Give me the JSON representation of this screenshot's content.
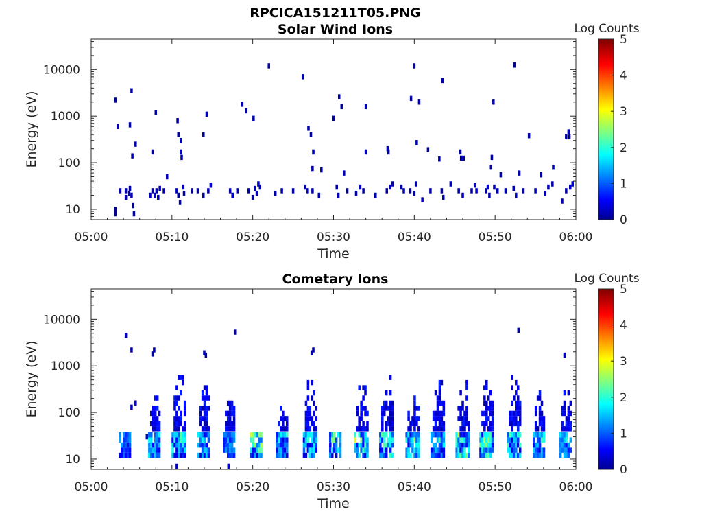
{
  "figure": {
    "title": "RPCICA151211T05.PNG"
  },
  "colorbar": {
    "label": "Log Counts",
    "ticks": [
      "0",
      "1",
      "2",
      "3",
      "4",
      "5"
    ],
    "range": [
      0,
      5
    ],
    "colormap": "jet"
  },
  "chart_data": [
    {
      "type": "heatmap",
      "title": "Solar Wind Ions",
      "xlabel": "Time",
      "ylabel": "Energy (eV)",
      "xlim": [
        "05:00",
        "06:00"
      ],
      "xticks": [
        "05:00",
        "05:10",
        "05:20",
        "05:30",
        "05:40",
        "05:50",
        "06:00"
      ],
      "ylim": [
        6,
        45000
      ],
      "yscale": "log",
      "yticks": [
        "10",
        "100",
        "1000",
        "10000"
      ],
      "color_label": "Log Counts",
      "color_range": [
        0,
        5
      ],
      "cells": [
        [
          3.0,
          8,
          0.2
        ],
        [
          3.0,
          10,
          0.2
        ],
        [
          3.6,
          25,
          0.3
        ],
        [
          4.3,
          25,
          0.2
        ],
        [
          4.3,
          18,
          0.2
        ],
        [
          4.7,
          22,
          0.2
        ],
        [
          4.8,
          28,
          0.2
        ],
        [
          5.0,
          20,
          0.3
        ],
        [
          5.2,
          12,
          0.2
        ],
        [
          5.3,
          8,
          0.2
        ],
        [
          7.3,
          20,
          0.3
        ],
        [
          7.6,
          25,
          0.2
        ],
        [
          7.9,
          20,
          0.3
        ],
        [
          8.1,
          25,
          0.3
        ],
        [
          8.3,
          18,
          0.3
        ],
        [
          8.5,
          28,
          0.3
        ],
        [
          9.0,
          25,
          0.2
        ],
        [
          9.4,
          50,
          0.3
        ],
        [
          10.6,
          25,
          0.3
        ],
        [
          10.8,
          20,
          0.2
        ],
        [
          11.0,
          14,
          0.2
        ],
        [
          11.4,
          30,
          0.3
        ],
        [
          11.5,
          22,
          0.2
        ],
        [
          12.5,
          25,
          0.2
        ],
        [
          13.2,
          25,
          0.2
        ],
        [
          13.9,
          20,
          0.2
        ],
        [
          14.5,
          25,
          0.2
        ],
        [
          14.8,
          33,
          0.3
        ],
        [
          17.2,
          25,
          0.2
        ],
        [
          17.5,
          20,
          0.3
        ],
        [
          18.1,
          25,
          0.2
        ],
        [
          19.5,
          25,
          0.2
        ],
        [
          20.0,
          18,
          0.3
        ],
        [
          20.3,
          28,
          0.3
        ],
        [
          20.5,
          22,
          0.4
        ],
        [
          20.7,
          35,
          0.3
        ],
        [
          20.9,
          30,
          0.2
        ],
        [
          22.8,
          22,
          0.2
        ],
        [
          23.6,
          25,
          0.2
        ],
        [
          25.0,
          25,
          0.2
        ],
        [
          26.5,
          30,
          0.2
        ],
        [
          26.8,
          25,
          0.3
        ],
        [
          27.4,
          25,
          0.2
        ],
        [
          28.2,
          20,
          0.2
        ],
        [
          30.4,
          30,
          0.2
        ],
        [
          30.6,
          20,
          0.3
        ],
        [
          31.7,
          25,
          0.2
        ],
        [
          32.8,
          22,
          0.2
        ],
        [
          33.3,
          30,
          0.3
        ],
        [
          33.7,
          25,
          0.2
        ],
        [
          35.2,
          20,
          0.2
        ],
        [
          36.6,
          25,
          0.2
        ],
        [
          37.0,
          30,
          0.3
        ],
        [
          37.3,
          35,
          0.3
        ],
        [
          38.4,
          30,
          0.2
        ],
        [
          38.7,
          25,
          0.2
        ],
        [
          39.5,
          25,
          0.2
        ],
        [
          40.0,
          22,
          0.3
        ],
        [
          40.2,
          35,
          0.3
        ],
        [
          41.0,
          16,
          0.3
        ],
        [
          42.0,
          25,
          0.2
        ],
        [
          43.4,
          25,
          0.2
        ],
        [
          43.6,
          18,
          0.3
        ],
        [
          44.5,
          35,
          0.2
        ],
        [
          45.5,
          25,
          0.2
        ],
        [
          46.0,
          20,
          0.3
        ],
        [
          47.1,
          25,
          0.2
        ],
        [
          47.5,
          33,
          0.3
        ],
        [
          47.7,
          25,
          0.3
        ],
        [
          48.9,
          25,
          0.2
        ],
        [
          49.1,
          30,
          0.3
        ],
        [
          49.3,
          20,
          0.2
        ],
        [
          49.9,
          30,
          0.2
        ],
        [
          50.3,
          25,
          0.2
        ],
        [
          51.3,
          25,
          0.2
        ],
        [
          52.3,
          28,
          0.2
        ],
        [
          52.6,
          20,
          0.3
        ],
        [
          53.5,
          25,
          0.2
        ],
        [
          55.0,
          25,
          0.2
        ],
        [
          56.2,
          22,
          0.3
        ],
        [
          56.6,
          30,
          0.2
        ],
        [
          57.1,
          35,
          0.2
        ],
        [
          58.3,
          15,
          0.2
        ],
        [
          58.8,
          25,
          0.2
        ],
        [
          59.3,
          30,
          0.3
        ],
        [
          59.6,
          35,
          0.3
        ],
        [
          3.0,
          2200,
          0.2
        ],
        [
          3.3,
          600,
          0.2
        ],
        [
          5.0,
          3500,
          0.2
        ],
        [
          4.8,
          650,
          0.2
        ],
        [
          5.1,
          140,
          0.2
        ],
        [
          5.5,
          250,
          0.2
        ],
        [
          7.6,
          170,
          0.2
        ],
        [
          8.0,
          1200,
          0.2
        ],
        [
          10.7,
          800,
          0.2
        ],
        [
          10.8,
          400,
          0.2
        ],
        [
          11.1,
          300,
          0.2
        ],
        [
          11.1,
          170,
          0.2
        ],
        [
          11.2,
          130,
          0.2
        ],
        [
          13.9,
          400,
          0.2
        ],
        [
          14.3,
          1100,
          0.2
        ],
        [
          18.7,
          1800,
          0.2
        ],
        [
          19.2,
          1300,
          0.2
        ],
        [
          20.1,
          900,
          0.2
        ],
        [
          22.0,
          12000,
          0.2
        ],
        [
          26.2,
          7000,
          0.2
        ],
        [
          26.9,
          550,
          0.2
        ],
        [
          27.2,
          400,
          0.2
        ],
        [
          27.5,
          170,
          0.2
        ],
        [
          27.4,
          75,
          0.2
        ],
        [
          28.5,
          70,
          0.2
        ],
        [
          30.0,
          900,
          0.2
        ],
        [
          30.7,
          2600,
          0.2
        ],
        [
          31.0,
          1600,
          0.2
        ],
        [
          31.3,
          60,
          0.2
        ],
        [
          34.0,
          1600,
          0.2
        ],
        [
          34.0,
          170,
          0.2
        ],
        [
          36.7,
          200,
          0.2
        ],
        [
          36.8,
          170,
          0.2
        ],
        [
          39.6,
          2400,
          0.2
        ],
        [
          40.0,
          12000,
          0.2
        ],
        [
          40.3,
          270,
          0.2
        ],
        [
          40.6,
          2000,
          0.2
        ],
        [
          41.7,
          190,
          0.2
        ],
        [
          43.1,
          120,
          0.2
        ],
        [
          43.5,
          5800,
          0.2
        ],
        [
          45.7,
          170,
          0.2
        ],
        [
          45.8,
          125,
          0.2
        ],
        [
          46.1,
          125,
          0.2
        ],
        [
          49.6,
          130,
          0.2
        ],
        [
          49.5,
          80,
          0.2
        ],
        [
          49.8,
          2000,
          0.2
        ],
        [
          50.7,
          55,
          0.2
        ],
        [
          52.4,
          12500,
          0.2
        ],
        [
          53.0,
          60,
          0.2
        ],
        [
          54.2,
          380,
          0.2
        ],
        [
          55.7,
          55,
          0.2
        ],
        [
          57.2,
          80,
          0.2
        ],
        [
          58.8,
          360,
          0.2
        ],
        [
          59.1,
          460,
          0.2
        ],
        [
          59.2,
          360,
          0.2
        ]
      ]
    },
    {
      "type": "heatmap",
      "title": "Cometary Ions",
      "xlabel": "Time",
      "ylabel": "Energy (eV)",
      "xlim": [
        "05:00",
        "06:00"
      ],
      "xticks": [
        "05:00",
        "05:10",
        "05:20",
        "05:30",
        "05:40",
        "05:50",
        "06:00"
      ],
      "ylim": [
        6,
        45000
      ],
      "yscale": "log",
      "yticks": [
        "10",
        "100",
        "1000",
        "10000"
      ],
      "color_label": "Log Counts",
      "color_range": [
        0,
        5
      ],
      "bursts": [
        {
          "t": 4.3,
          "w": 1.5,
          "top": 35,
          "peak": 1.2
        },
        {
          "t": 8.0,
          "w": 1.6,
          "top": 250,
          "peak": 1.5
        },
        {
          "t": 11.0,
          "w": 1.8,
          "top": 700,
          "peak": 1.7
        },
        {
          "t": 14.1,
          "w": 1.6,
          "top": 500,
          "peak": 1.3
        },
        {
          "t": 17.2,
          "w": 1.5,
          "top": 250,
          "peak": 1.0
        },
        {
          "t": 20.5,
          "w": 1.4,
          "top": 35,
          "peak": 2.3
        },
        {
          "t": 23.8,
          "w": 1.6,
          "top": 180,
          "peak": 1.4
        },
        {
          "t": 27.2,
          "w": 1.7,
          "top": 550,
          "peak": 1.6
        },
        {
          "t": 30.3,
          "w": 1.4,
          "top": 35,
          "peak": 1.7
        },
        {
          "t": 33.6,
          "w": 1.8,
          "top": 400,
          "peak": 2.0
        },
        {
          "t": 36.7,
          "w": 1.8,
          "top": 600,
          "peak": 1.9
        },
        {
          "t": 39.9,
          "w": 1.7,
          "top": 300,
          "peak": 1.9
        },
        {
          "t": 43.0,
          "w": 1.7,
          "top": 550,
          "peak": 1.6
        },
        {
          "t": 46.1,
          "w": 1.7,
          "top": 450,
          "peak": 2.2
        },
        {
          "t": 49.1,
          "w": 1.8,
          "top": 450,
          "peak": 2.2
        },
        {
          "t": 52.5,
          "w": 1.8,
          "top": 600,
          "peak": 1.9
        },
        {
          "t": 55.6,
          "w": 1.6,
          "top": 300,
          "peak": 1.6
        },
        {
          "t": 58.9,
          "w": 1.6,
          "top": 450,
          "peak": 1.4
        }
      ],
      "scatter": [
        [
          4.3,
          4500,
          0.2
        ],
        [
          5.0,
          2200,
          0.2
        ],
        [
          7.6,
          1800,
          0.2
        ],
        [
          7.8,
          2200,
          0.2
        ],
        [
          14.0,
          1900,
          0.2
        ],
        [
          14.2,
          1700,
          0.2
        ],
        [
          17.8,
          5300,
          0.2
        ],
        [
          27.3,
          1900,
          0.2
        ],
        [
          27.5,
          2200,
          0.2
        ],
        [
          52.9,
          5800,
          0.2
        ],
        [
          58.6,
          1700,
          0.2
        ],
        [
          5.0,
          130,
          0.3
        ],
        [
          5.5,
          160,
          0.2
        ],
        [
          6.9,
          30,
          0.3
        ],
        [
          17.0,
          7,
          0.3
        ],
        [
          10.6,
          7,
          0.3
        ]
      ]
    }
  ]
}
